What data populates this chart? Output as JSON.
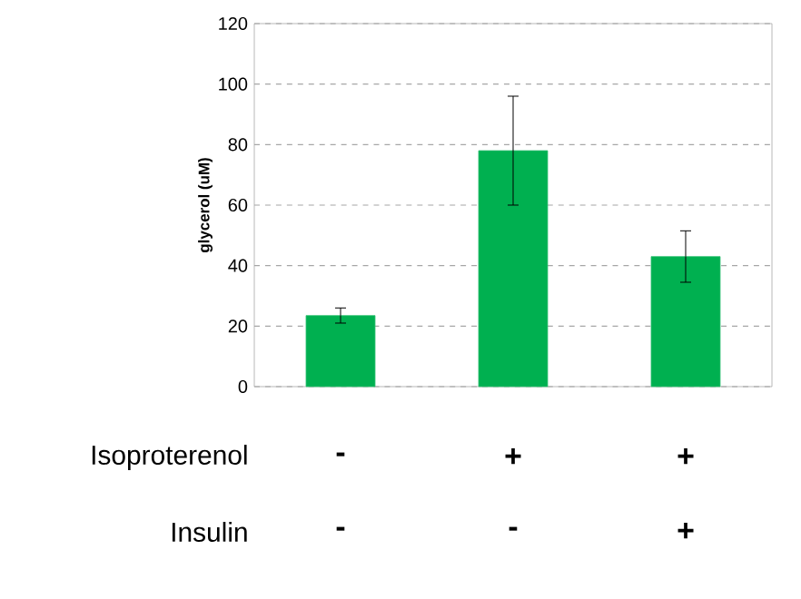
{
  "chart_data": {
    "type": "bar",
    "ylabel": "glycerol (uM)",
    "categories": [
      null,
      null,
      null
    ],
    "values": [
      23.5,
      78,
      43
    ],
    "errors": [
      2.5,
      18,
      8.5
    ],
    "color": "#00b050",
    "ylim": [
      0,
      120
    ],
    "yticks": [
      0,
      20,
      40,
      60,
      80,
      100,
      120
    ],
    "grid": "y",
    "annotations": [
      "Isoproterenol",
      "-",
      "+",
      "+",
      "Insulin",
      "-",
      "-",
      "+"
    ]
  }
}
